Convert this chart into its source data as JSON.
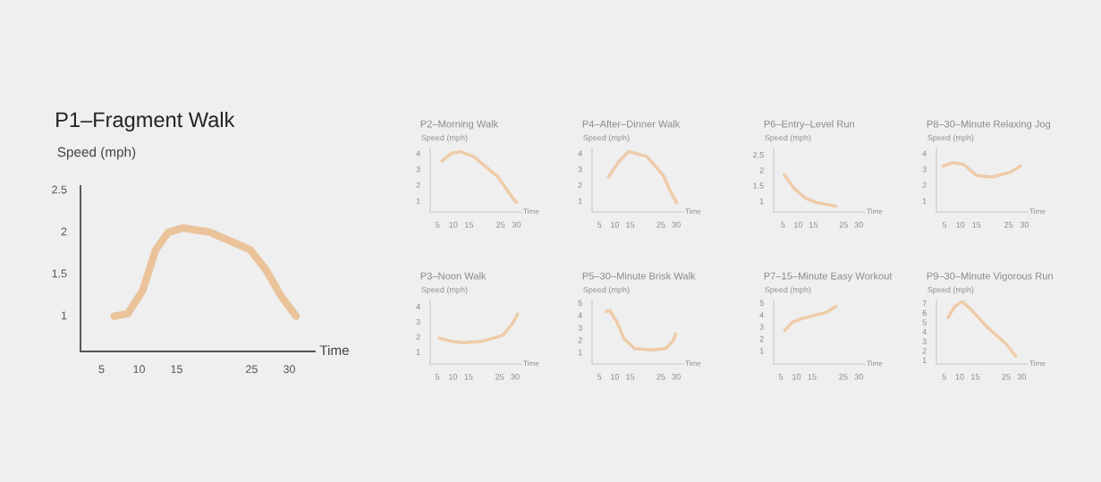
{
  "chart_data": [
    {
      "type": "line",
      "title": "P1–Fragment Walk",
      "ylabel": "Speed (mph)",
      "xlabel": "Time",
      "color": "#eabb8c",
      "x": [
        6.7,
        8.5,
        10.5,
        12.2,
        13.9,
        15.8,
        19.4,
        24.8,
        26.9,
        28.9,
        30.9
      ],
      "values": [
        0.99,
        1.02,
        1.3,
        1.78,
        1.99,
        2.04,
        1.99,
        1.78,
        1.54,
        1.23,
        0.99
      ],
      "xlim": [
        2.2,
        33.4
      ],
      "ylim": [
        0.57,
        2.54
      ],
      "xticks": [
        5,
        10,
        15,
        25,
        30
      ],
      "yticks": [
        1,
        1.5,
        2,
        2.5
      ]
    },
    {
      "type": "line",
      "title": "P2–Morning Walk",
      "ylabel": "Speed (mph)",
      "xlabel": "Time",
      "color": "#eec6a0",
      "x": [
        6.4,
        9.5,
        12.2,
        16.4,
        24.2,
        28.4,
        30.0
      ],
      "values": [
        3.5,
        4.0,
        4.1,
        3.8,
        2.5,
        1.3,
        0.9
      ],
      "xlim": [
        2.7,
        31.6
      ],
      "ylim": [
        0.3,
        4.3
      ],
      "xticks": [
        5,
        10,
        15,
        25,
        30
      ],
      "yticks": [
        1,
        2,
        3,
        4
      ]
    },
    {
      "type": "line",
      "title": "P4–After–Dinner Walk",
      "ylabel": "Speed (mph)",
      "xlabel": "Time",
      "color": "#eec6a0",
      "x": [
        7.9,
        11.4,
        14.5,
        20.4,
        25.8,
        28.1,
        30.1
      ],
      "values": [
        2.5,
        3.5,
        4.1,
        3.8,
        2.6,
        1.6,
        0.9
      ],
      "xlim": [
        2.6,
        32.3
      ],
      "ylim": [
        0.3,
        4.3
      ],
      "xticks": [
        5,
        10,
        15,
        25,
        30
      ],
      "yticks": [
        1,
        2,
        3,
        4
      ]
    },
    {
      "type": "line",
      "title": "P6–Entry–Level Run",
      "ylabel": "Speed (mph)",
      "xlabel": "Time",
      "color": "#eec6a0",
      "x": [
        5.4,
        8.5,
        12.5,
        16.2,
        22.4
      ],
      "values": [
        1.85,
        1.42,
        1.09,
        0.95,
        0.84
      ],
      "xlim": [
        1.9,
        32.0
      ],
      "ylim": [
        0.65,
        2.7
      ],
      "xticks": [
        5,
        10,
        15,
        25,
        30
      ],
      "yticks": [
        1,
        1.5,
        2,
        2.5
      ]
    },
    {
      "type": "line",
      "title": "P8–30–Minute Relaxing Jog",
      "ylabel": "Speed (mph)",
      "xlabel": "Time",
      "color": "#eec6a0",
      "x": [
        4.6,
        7.8,
        11.0,
        15.0,
        19.8,
        25.6,
        28.8
      ],
      "values": [
        3.2,
        3.4,
        3.3,
        2.6,
        2.5,
        2.8,
        3.2
      ],
      "xlim": [
        2.5,
        31.0
      ],
      "ylim": [
        0.3,
        4.3
      ],
      "xticks": [
        5,
        10,
        15,
        25,
        30
      ],
      "yticks": [
        1,
        2,
        3,
        4
      ]
    },
    {
      "type": "line",
      "title": "P3–Noon Walk",
      "ylabel": "Speed (mph)",
      "xlabel": "Time",
      "color": "#eec6a0",
      "x": [
        5.6,
        9.5,
        13.4,
        19.4,
        26.1,
        29.2,
        30.8
      ],
      "values": [
        1.9,
        1.7,
        1.6,
        1.7,
        2.1,
        2.9,
        3.5
      ],
      "xlim": [
        2.7,
        32.0
      ],
      "ylim": [
        0.2,
        4.4
      ],
      "xticks": [
        5,
        10,
        15,
        25,
        30
      ],
      "yticks": [
        1,
        2,
        3,
        4
      ]
    },
    {
      "type": "line",
      "title": "P5–30–Minute Brisk Walk",
      "ylabel": "Speed (mph)",
      "xlabel": "Time",
      "color": "#eec6a0",
      "x": [
        7.1,
        8.3,
        10.6,
        13.0,
        16.4,
        21.8,
        26.6,
        28.9,
        29.9
      ],
      "values": [
        4.3,
        4.4,
        3.5,
        2.1,
        1.3,
        1.2,
        1.3,
        1.9,
        2.5
      ],
      "xlim": [
        2.6,
        32.3
      ],
      "ylim": [
        0.05,
        5.2
      ],
      "xticks": [
        5,
        10,
        15,
        25,
        30
      ],
      "yticks": [
        1,
        2,
        3,
        4,
        5
      ]
    },
    {
      "type": "line",
      "title": "P7–15–Minute Easy Workout",
      "ylabel": "Speed (mph)",
      "xlabel": "Time",
      "color": "#eec6a0",
      "x": [
        6.2,
        8.8,
        11.9,
        15.0,
        19.6,
        22.6
      ],
      "values": [
        2.7,
        3.4,
        3.7,
        3.9,
        4.2,
        4.7
      ],
      "xlim": [
        2.7,
        31.9
      ],
      "ylim": [
        -0.1,
        5.2
      ],
      "xticks": [
        5,
        10,
        15,
        25,
        30
      ],
      "yticks": [
        1,
        2,
        3,
        4,
        5
      ]
    },
    {
      "type": "line",
      "title": "P9–30–Minute Vigorous Run",
      "ylabel": "Speed (mph)",
      "xlabel": "Time",
      "color": "#eec6a0",
      "x": [
        6.2,
        8.5,
        10.8,
        13.8,
        18.8,
        25.0,
        28.1
      ],
      "values": [
        5.5,
        6.7,
        7.2,
        6.3,
        4.5,
        2.7,
        1.4
      ],
      "xlim": [
        2.5,
        31.9
      ],
      "ylim": [
        0.6,
        7.3
      ],
      "xticks": [
        5,
        10,
        15,
        25,
        30
      ],
      "yticks": [
        1,
        2,
        3,
        4,
        5,
        6,
        7
      ]
    }
  ]
}
